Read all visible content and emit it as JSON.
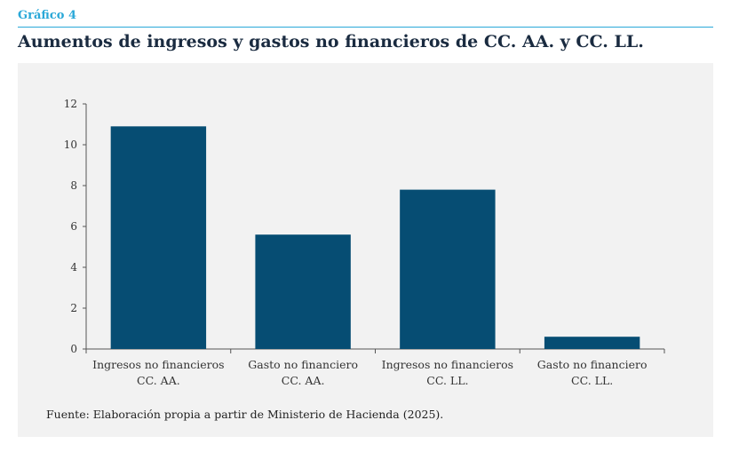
{
  "header": {
    "figure_label": "Gráfico 4",
    "title": "Aumentos de ingresos y gastos no financieros de CC. AA.  y CC. LL."
  },
  "source": "Fuente: Elaboración propia a partir de Ministerio de Hacienda (2025).",
  "colors": {
    "bar": "#064d73",
    "accent": "#2aa8d8",
    "panel": "#f2f2f2"
  },
  "chart_data": {
    "type": "bar",
    "categories": [
      [
        "Ingresos no financieros",
        "CC. AA."
      ],
      [
        "Gasto no financiero",
        "CC. AA."
      ],
      [
        "Ingresos no financieros",
        "CC. LL."
      ],
      [
        "Gasto no financiero",
        "CC. LL."
      ]
    ],
    "values": [
      10.9,
      5.6,
      7.8,
      0.6
    ],
    "yticks": [
      0,
      2,
      4,
      6,
      8,
      10,
      12
    ],
    "ylim": [
      0,
      12
    ],
    "grid": false,
    "legend": "none"
  }
}
